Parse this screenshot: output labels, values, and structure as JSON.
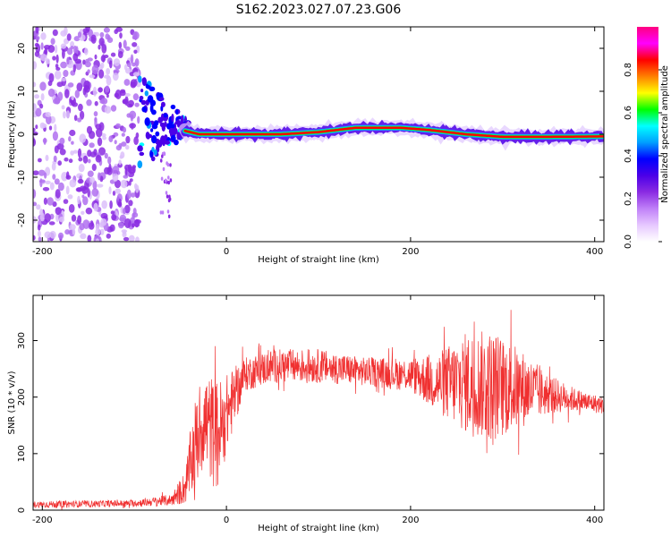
{
  "title": "S162.2023.027.07.23.G06",
  "chart_data": [
    {
      "type": "heatmap",
      "xlabel": "Height of straight line (km)",
      "ylabel": "Frequency (Hz)",
      "xlim": [
        -210,
        410
      ],
      "ylim": [
        -25,
        25
      ],
      "xticks": [
        "-200",
        "0",
        "200",
        "400"
      ],
      "yticks": [
        "20",
        "10",
        "0",
        "-10",
        "-20"
      ],
      "colorbar": {
        "label": "Normalized spectral amplitude",
        "range": [
          0,
          1
        ],
        "ticks": [
          "0.0",
          "0.2",
          "0.4",
          "0.6",
          "0.8"
        ],
        "colors": [
          "#ffffff",
          "#e6c8ff",
          "#c080f8",
          "#8a2be2",
          "#4b00e8",
          "#0000ff",
          "#00a0ff",
          "#00ffff",
          "#00ff00",
          "#ffff00",
          "#ff8000",
          "#ff0000",
          "#ff00ff",
          "#ff0080"
        ]
      },
      "features": {
        "noise_band_x": [
          -210,
          -95
        ],
        "main_line": [
          {
            "x": -45,
            "y": 0.8
          },
          {
            "x": -30,
            "y": 0.0
          },
          {
            "x": 0,
            "y": 0.0
          },
          {
            "x": 60,
            "y": 0.0
          },
          {
            "x": 100,
            "y": 0.5
          },
          {
            "x": 140,
            "y": 1.5
          },
          {
            "x": 190,
            "y": 1.5
          },
          {
            "x": 220,
            "y": 1.0
          },
          {
            "x": 260,
            "y": 0.0
          },
          {
            "x": 300,
            "y": -0.6
          },
          {
            "x": 350,
            "y": -0.6
          },
          {
            "x": 410,
            "y": -0.5
          }
        ]
      }
    },
    {
      "type": "line",
      "xlabel": "Height of straight line (km)",
      "ylabel": "SNR (10 * v/v)",
      "xlim": [
        -210,
        410
      ],
      "ylim": [
        0,
        380
      ],
      "xticks": [
        "-200",
        "0",
        "200",
        "400"
      ],
      "yticks": [
        "300",
        "200",
        "100",
        "0"
      ],
      "series": [
        {
          "color": "#f03030",
          "envelope": [
            {
              "x": -210,
              "mean": 10,
              "spread": 6
            },
            {
              "x": -100,
              "mean": 12,
              "spread": 6
            },
            {
              "x": -60,
              "mean": 18,
              "spread": 10
            },
            {
              "x": -45,
              "mean": 40,
              "spread": 30
            },
            {
              "x": -35,
              "mean": 110,
              "spread": 80
            },
            {
              "x": -25,
              "mean": 160,
              "spread": 90
            },
            {
              "x": -10,
              "mean": 130,
              "spread": 100
            },
            {
              "x": 0,
              "mean": 170,
              "spread": 70
            },
            {
              "x": 20,
              "mean": 240,
              "spread": 30
            },
            {
              "x": 50,
              "mean": 255,
              "spread": 30
            },
            {
              "x": 100,
              "mean": 255,
              "spread": 30
            },
            {
              "x": 150,
              "mean": 245,
              "spread": 25
            },
            {
              "x": 200,
              "mean": 240,
              "spread": 30
            },
            {
              "x": 230,
              "mean": 225,
              "spread": 55
            },
            {
              "x": 260,
              "mean": 225,
              "spread": 90
            },
            {
              "x": 290,
              "mean": 220,
              "spread": 100
            },
            {
              "x": 320,
              "mean": 215,
              "spread": 70
            },
            {
              "x": 350,
              "mean": 205,
              "spread": 35
            },
            {
              "x": 380,
              "mean": 195,
              "spread": 20
            },
            {
              "x": 410,
              "mean": 185,
              "spread": 15
            }
          ]
        }
      ]
    }
  ]
}
